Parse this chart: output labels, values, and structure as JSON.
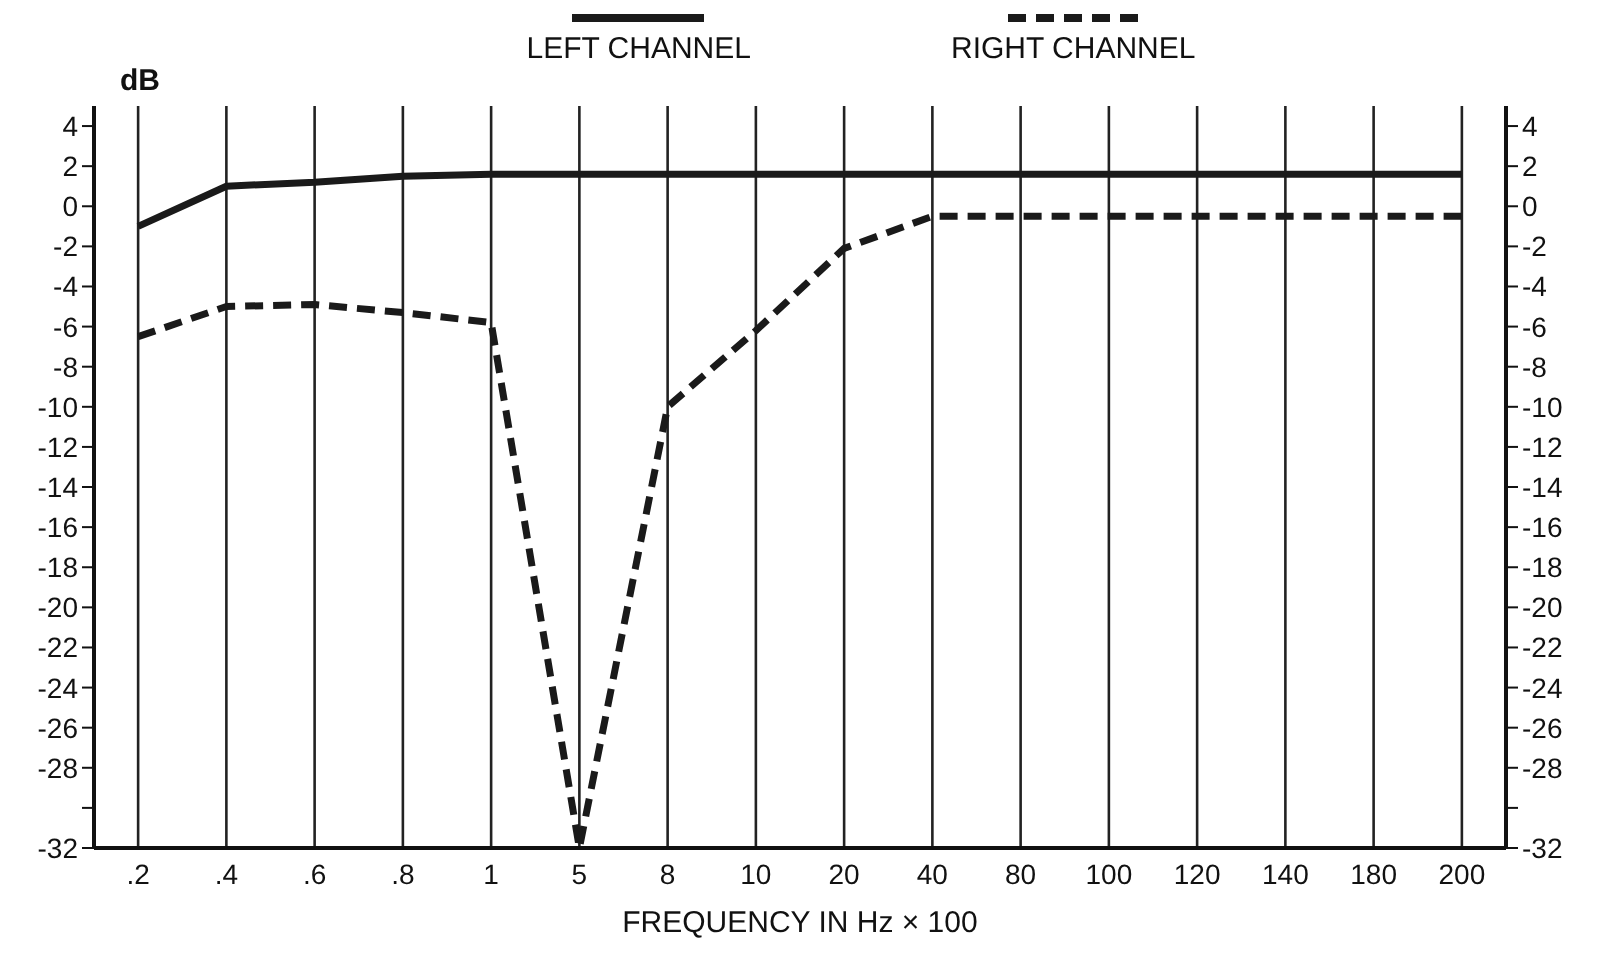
{
  "chart_data": {
    "type": "line",
    "xlabel": "FREQUENCY IN Hz × 100",
    "ylabel": "dB",
    "categories": [
      ".2",
      ".4",
      ".6",
      ".8",
      "1",
      "5",
      "8",
      "10",
      "20",
      "40",
      "80",
      "100",
      "120",
      "140",
      "180",
      "200"
    ],
    "series": [
      {
        "name": "LEFT CHANNEL",
        "color": "#1a1a1a",
        "line_style": "solid",
        "values": [
          -1,
          1,
          1.2,
          1.5,
          1.6,
          1.6,
          1.6,
          1.6,
          1.6,
          1.6,
          1.6,
          1.6,
          1.6,
          1.6,
          1.6,
          1.6
        ]
      },
      {
        "name": "RIGHT CHANNEL",
        "color": "#1a1a1a",
        "line_style": "dashed",
        "values": [
          -6.5,
          -5,
          -4.9,
          -5.3,
          -5.8,
          -32,
          -10,
          -6.2,
          -2.1,
          -0.5,
          -0.5,
          -0.5,
          -0.5,
          -0.5,
          -0.5,
          -0.5
        ]
      }
    ],
    "ylim": [
      -32,
      5
    ],
    "yticks": [
      4,
      2,
      0,
      -2,
      -4,
      -6,
      -8,
      -10,
      -12,
      -14,
      -16,
      -18,
      -20,
      -22,
      -24,
      -26,
      -28,
      {
        "value": -30,
        "label": null
      },
      -32
    ],
    "y2lim": [
      -32,
      5
    ],
    "y2ticks": [
      4,
      2,
      0,
      -2,
      -4,
      -6,
      -8,
      -10,
      -12,
      -14,
      -16,
      -18,
      -20,
      -22,
      -24,
      -26,
      -28,
      {
        "value": -30,
        "label": null
      },
      -32
    ],
    "grid": true,
    "legend": "top",
    "marker": "none"
  }
}
